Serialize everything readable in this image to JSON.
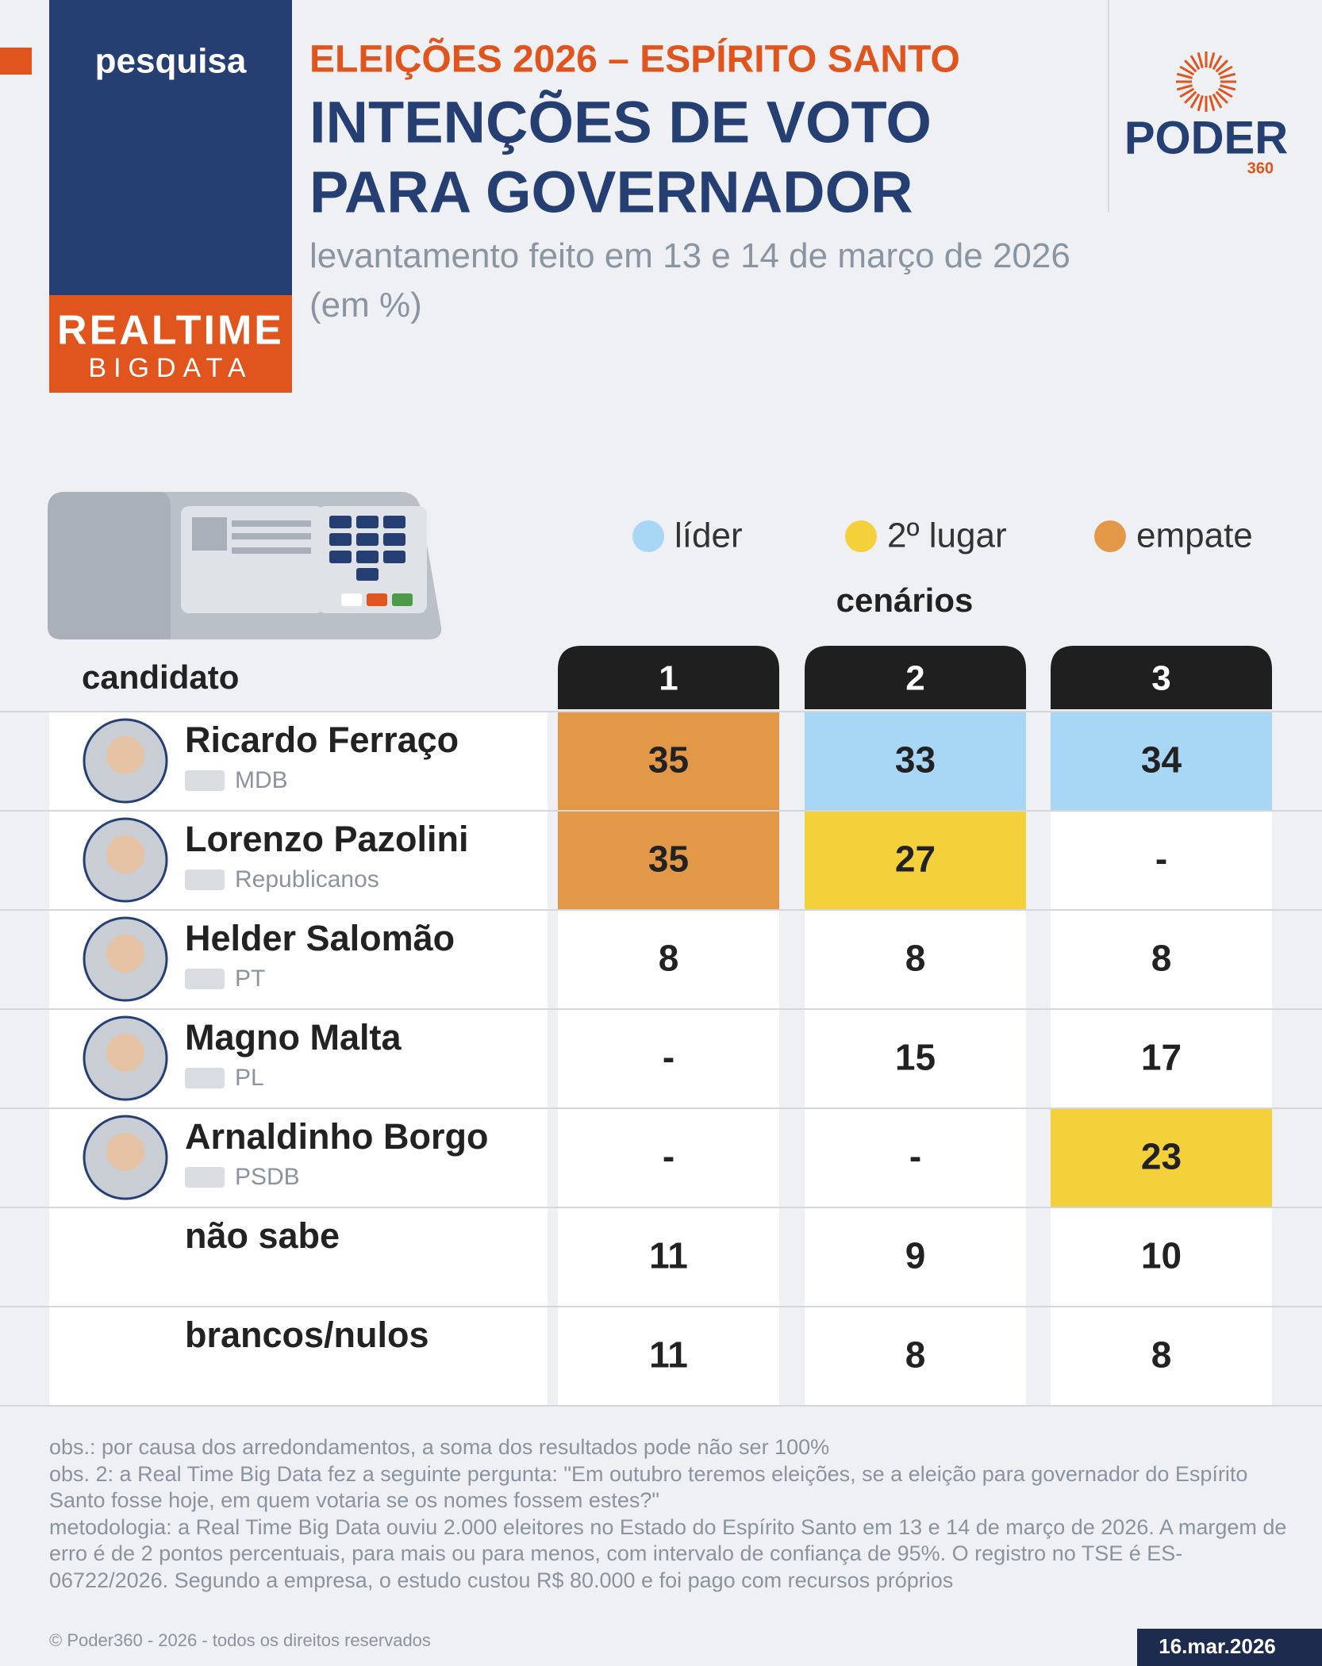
{
  "header": {
    "kicker": "pesquisa",
    "brand_line1": "REALTIME",
    "brand_line2": "BIGDATA",
    "overline": "ELEIÇÕES 2026 – ESPÍRITO SANTO",
    "title_lines": [
      "INTENÇÕES DE VOTO",
      "PARA GOVERNADOR"
    ],
    "subtitle": "levantamento feito em 13 e 14 de março de 2026 (em %)",
    "logo": "PODER",
    "logo_sub": "360"
  },
  "legend": [
    {
      "label": "líder",
      "color": "#a8d6f5"
    },
    {
      "label": "2º lugar",
      "color": "#f4d03b"
    },
    {
      "label": "empate",
      "color": "#e39848"
    }
  ],
  "table": {
    "scenarios_label": "cenários",
    "candidate_label": "candidato",
    "columns": [
      "1",
      "2",
      "3"
    ],
    "rows": [
      {
        "name": "Ricardo Ferraço",
        "party": "MDB",
        "values": [
          35,
          33,
          34
        ],
        "highlight": [
          2,
          0,
          0
        ]
      },
      {
        "name": "Lorenzo Pazolini",
        "party": "Republicanos",
        "values": [
          35,
          27,
          "-"
        ],
        "highlight": [
          2,
          1,
          null
        ]
      },
      {
        "name": "Helder Salomão",
        "party": "PT",
        "values": [
          8,
          8,
          8
        ],
        "highlight": [
          null,
          null,
          null
        ]
      },
      {
        "name": "Magno Malta",
        "party": "PL",
        "values": [
          "-",
          15,
          17
        ],
        "highlight": [
          null,
          null,
          null
        ]
      },
      {
        "name": "Arnaldinho Borgo",
        "party": "PSDB",
        "values": [
          "-",
          "-",
          23
        ],
        "highlight": [
          null,
          null,
          1
        ]
      },
      {
        "name": "não sabe",
        "values": [
          11,
          9,
          10
        ],
        "highlight": [
          null,
          null,
          null
        ]
      },
      {
        "name": "brancos/nulos",
        "values": [
          11,
          8,
          8
        ],
        "highlight": [
          null,
          null,
          null
        ]
      }
    ]
  },
  "notes": [
    "obs.: por causa dos arredondamentos, a soma dos resultados pode não ser 100%",
    "obs. 2: a Real Time Big Data fez a seguinte pergunta: \"Em outubro teremos eleições, se a eleição para governador do Espírito Santo fosse hoje, em quem votaria se os nomes fossem estes?\"",
    "metodologia: a Real Time Big Data ouviu 2.000 eleitores no Estado do Espírito Santo em 13 e 14 de março de 2026. A margem de erro é de 2 pontos percentuais, para mais ou para menos, com intervalo de confiança de 95%. O registro no TSE é ES-06722/2026. Segundo a empresa, o estudo custou R$ 80.000 e foi pago com recursos próprios"
  ],
  "copyright": "© Poder360 - 2026 - todos os direitos reservados",
  "date": "16.mar.2026"
}
